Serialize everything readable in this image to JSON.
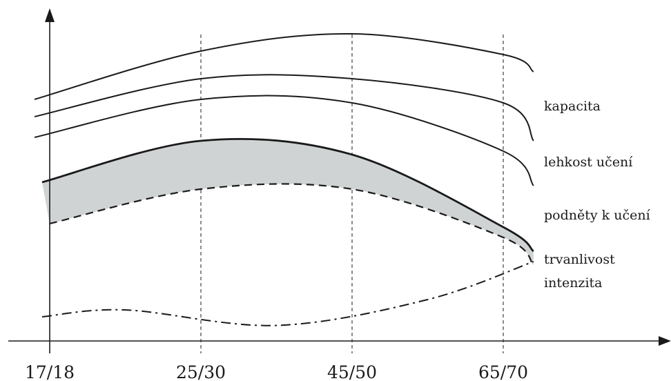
{
  "chart_data": {
    "type": "line",
    "title": "",
    "xlabel": "",
    "ylabel": "",
    "categories": [
      "17/18",
      "25/30",
      "45/50",
      "65/70"
    ],
    "x_positions": [
      0,
      1,
      2,
      3
    ],
    "xlim": [
      -0.05,
      3.2
    ],
    "ylim": [
      0,
      10
    ],
    "grid": "vertical dashed at each category",
    "legend": "right-end labels",
    "series": [
      {
        "name": "kapacita",
        "style": "solid",
        "points": [
          [
            -0.1,
            7.0
          ],
          [
            1.0,
            8.4
          ],
          [
            2.0,
            8.9
          ],
          [
            3.0,
            8.3
          ],
          [
            3.2,
            7.8
          ]
        ]
      },
      {
        "name": "lehkost učení",
        "style": "solid",
        "points": [
          [
            -0.1,
            6.5
          ],
          [
            1.0,
            7.6
          ],
          [
            2.0,
            7.6
          ],
          [
            3.0,
            6.9
          ],
          [
            3.2,
            5.8
          ]
        ]
      },
      {
        "name": "podněty k učení",
        "style": "solid",
        "points": [
          [
            -0.1,
            5.9
          ],
          [
            1.0,
            7.0
          ],
          [
            2.0,
            6.9
          ],
          [
            3.0,
            5.5
          ],
          [
            3.2,
            4.5
          ]
        ]
      },
      {
        "name": "trvanlivost",
        "style": "bold",
        "points": [
          [
            -0.05,
            4.6
          ],
          [
            1.0,
            5.8
          ],
          [
            2.0,
            5.4
          ],
          [
            3.0,
            3.3
          ],
          [
            3.2,
            2.6
          ]
        ]
      },
      {
        "name": "intenzita",
        "style": "dashed",
        "points": [
          [
            0.0,
            3.4
          ],
          [
            1.0,
            4.4
          ],
          [
            2.0,
            4.4
          ],
          [
            3.0,
            3.0
          ],
          [
            3.2,
            2.2
          ]
        ]
      },
      {
        "name": "",
        "style": "dashdot",
        "points": [
          [
            -0.05,
            0.7
          ],
          [
            0.5,
            0.9
          ],
          [
            1.5,
            0.45
          ],
          [
            2.5,
            1.2
          ],
          [
            3.2,
            2.3
          ]
        ]
      }
    ],
    "band": {
      "between": [
        "trvanlivost",
        "intenzita"
      ],
      "color": "#cfd3d3"
    }
  }
}
